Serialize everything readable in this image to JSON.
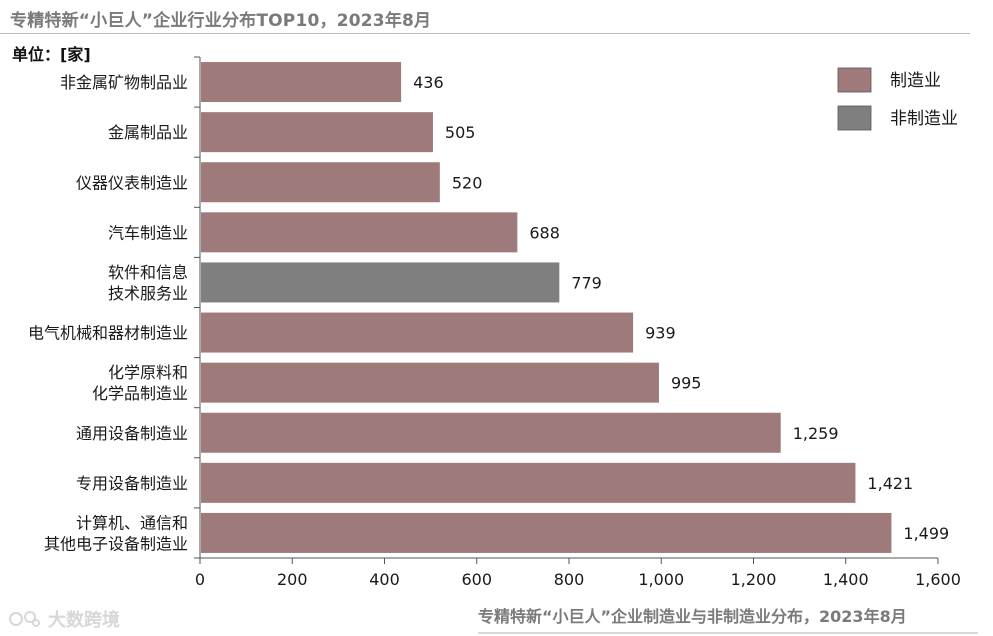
{
  "title": "专精特新“小巨人”企业行业分布TOP10，2023年8月",
  "unit_label": "单位：[家]",
  "caption": "专精特新“小巨人”企业制造业与非制造业分布，2023年8月",
  "watermark": "大数跨境",
  "colors": {
    "manufacturing": "#9e7a7a",
    "non_manufacturing": "#7f7f7f",
    "axis": "#555555"
  },
  "chart_data": {
    "type": "bar",
    "orientation": "horizontal",
    "categories": [
      "非金属矿物制品业",
      "金属制品业",
      "仪器仪表制造业",
      "汽车制造业",
      "软件和信息\n技术服务业",
      "电气机械和器材制造业",
      "化学原料和\n化学品制造业",
      "通用设备制造业",
      "专用设备制造业",
      "计算机、通信和\n其他电子设备制造业"
    ],
    "values": [
      436,
      505,
      520,
      688,
      779,
      939,
      995,
      1259,
      1421,
      1499
    ],
    "value_labels": [
      "436",
      "505",
      "520",
      "688",
      "779",
      "939",
      "995",
      "1,259",
      "1,421",
      "1,499"
    ],
    "group": [
      "制造业",
      "制造业",
      "制造业",
      "制造业",
      "非制造业",
      "制造业",
      "制造业",
      "制造业",
      "制造业",
      "制造业"
    ],
    "xlim": [
      0,
      1600
    ],
    "xticks": [
      0,
      200,
      400,
      600,
      800,
      1000,
      1200,
      1400,
      1600
    ],
    "xtick_labels": [
      "0",
      "200",
      "400",
      "600",
      "800",
      "1,000",
      "1,200",
      "1,400",
      "1,600"
    ],
    "grid": false,
    "legend": {
      "placement": "top-right",
      "entries": [
        {
          "label": "制造业",
          "color": "#9e7a7a"
        },
        {
          "label": "非制造业",
          "color": "#7f7f7f"
        }
      ]
    }
  }
}
